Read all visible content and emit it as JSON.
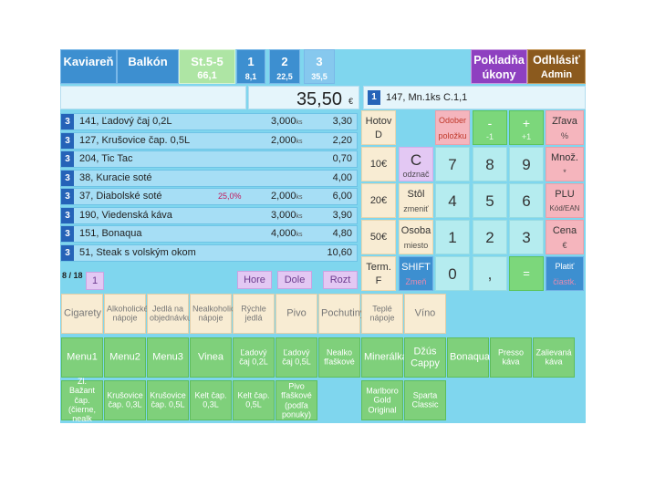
{
  "topbar": {
    "section": "Kaviareň",
    "area": "Balkón",
    "table": {
      "label": "St.5-5",
      "value": "66,1"
    },
    "tabs": [
      {
        "num": "1",
        "value": "8,1"
      },
      {
        "num": "2",
        "value": "22,5"
      },
      {
        "num": "3",
        "value": "35,5"
      }
    ],
    "register": {
      "line1": "Pokladňa",
      "line2": "úkony"
    },
    "logout": {
      "line1": "Odhlásiť",
      "line2": "Admin"
    }
  },
  "display": {
    "total": "35,50",
    "currency": "€",
    "info_badge": "1",
    "info_text": "147, Mn.1ks C.1,1"
  },
  "order": {
    "items": [
      {
        "badge": "3",
        "name": "141, Ľadový čaj 0,2L",
        "discount": "",
        "qty": "3,000",
        "unit": "ks",
        "amount": "3,30"
      },
      {
        "badge": "3",
        "name": "127, Krušovice čap. 0,5L",
        "discount": "",
        "qty": "2,000",
        "unit": "ks",
        "amount": "2,20"
      },
      {
        "badge": "3",
        "name": "204, Tic Tac",
        "discount": "",
        "qty": "",
        "unit": "",
        "amount": "0,70"
      },
      {
        "badge": "3",
        "name": "38, Kuracie soté",
        "discount": "",
        "qty": "",
        "unit": "",
        "amount": "4,00"
      },
      {
        "badge": "3",
        "name": "37, Diabolské soté",
        "discount": "25,0%",
        "qty": "2,000",
        "unit": "ks",
        "amount": "6,00"
      },
      {
        "badge": "3",
        "name": "190, Viedenská káva",
        "discount": "",
        "qty": "3,000",
        "unit": "ks",
        "amount": "3,90"
      },
      {
        "badge": "3",
        "name": "151, Bonaqua",
        "discount": "",
        "qty": "4,000",
        "unit": "ks",
        "amount": "4,80"
      },
      {
        "badge": "3",
        "name": "51, Steak s volským okom",
        "discount": "",
        "qty": "",
        "unit": "",
        "amount": "10,60"
      }
    ],
    "pager": "8 / 18",
    "page_btn": "1",
    "nav": {
      "home": "Hore",
      "down": "Dole",
      "split": "Rozt"
    }
  },
  "keypad": {
    "cash": {
      "l1": "Hotov",
      "l2": "D"
    },
    "remove": {
      "l1": "Odober",
      "l2": "položku"
    },
    "minus": {
      "l1": "-",
      "l2": "-1"
    },
    "plus": {
      "l1": "+",
      "l2": "+1"
    },
    "discount": {
      "l1": "Zľava",
      "l2": "%"
    },
    "ten": "10€",
    "clear": {
      "l1": "C",
      "l2": "odznač"
    },
    "n7": "7",
    "n8": "8",
    "n9": "9",
    "qty": {
      "l1": "Množ.",
      "l2": "*"
    },
    "twenty": "20€",
    "table": {
      "l1": "Stôl",
      "l2": "zmeniť"
    },
    "n4": "4",
    "n5": "5",
    "n6": "6",
    "plu": {
      "l1": "PLU",
      "l2": "Kód/EAN"
    },
    "fifty": "50€",
    "person": {
      "l1": "Osoba",
      "l2": "miesto"
    },
    "n1": "1",
    "n2": "2",
    "n3": "3",
    "price": {
      "l1": "Cena",
      "l2": "€"
    },
    "term": {
      "l1": "Term.",
      "l2": "F"
    },
    "shift": {
      "l1": "SHIFT",
      "l2": "Zmeň"
    },
    "n0": "0",
    "comma": ",",
    "equals": "=",
    "pay": {
      "l1": "Platiť",
      "l2": "čiastk."
    }
  },
  "categories": [
    "Cigarety",
    "Alkoholické nápoje",
    "Jedlá na objednávku",
    "Nealkoholické nápoje",
    "Rýchle jedlá",
    "Pivo",
    "Pochutiny",
    "Teplé nápoje",
    "Víno"
  ],
  "products_row1": [
    "Menu1",
    "Menu2",
    "Menu3",
    "Vinea",
    "Ľadový čaj 0,2L",
    "Ľadový čaj 0,5L",
    "Nealko fľaškové",
    "Minerálka",
    "Džús Cappy",
    "Bonaqua",
    "Presso káva",
    "Zalievaná káva"
  ],
  "products_row2": [
    "Zl. Bažant čap. (čierne, nealk",
    "Krušovice čap. 0,3L",
    "Krušovice čap. 0,5L",
    "Kelt čap. 0,3L",
    "Kelt čap. 0,5L",
    "Pivo fľaškové (podľa ponuky)",
    "Marlboro Gold Original",
    "Sparta Classic"
  ],
  "colors": {
    "background": "#7fd6ee",
    "topbar": "#3d8fd0",
    "product": "#7fd07b",
    "category": "#f8ecd3"
  }
}
